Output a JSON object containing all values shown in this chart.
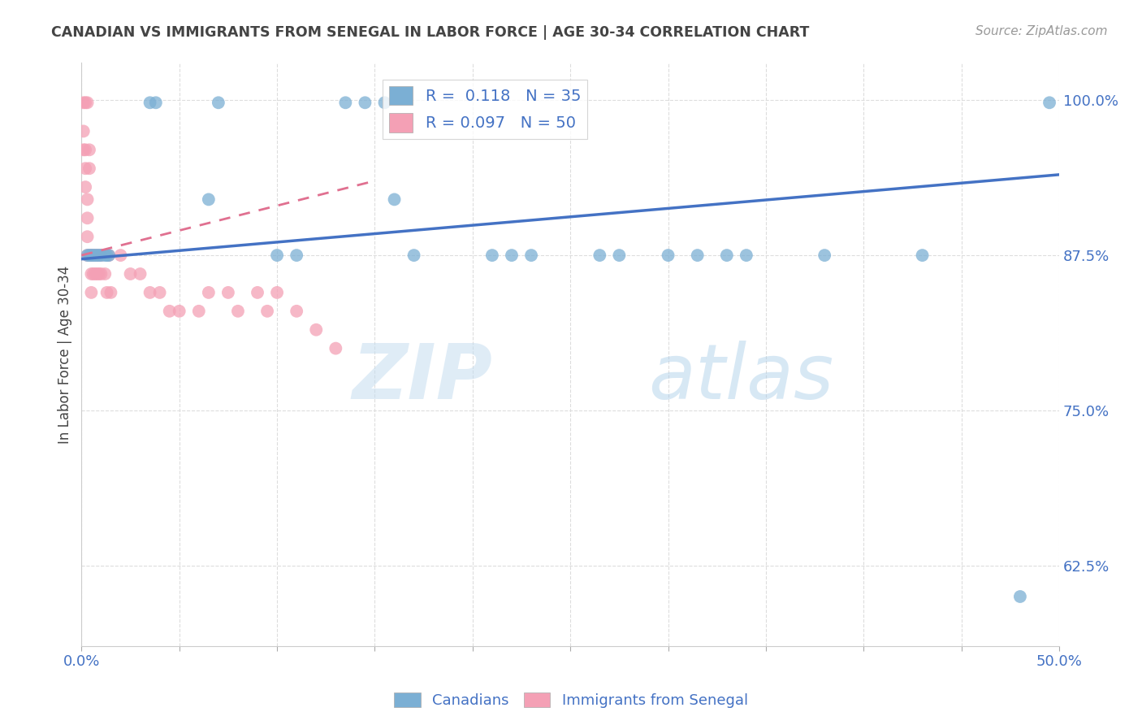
{
  "title": "CANADIAN VS IMMIGRANTS FROM SENEGAL IN LABOR FORCE | AGE 30-34 CORRELATION CHART",
  "source": "Source: ZipAtlas.com",
  "ylabel": "In Labor Force | Age 30-34",
  "xlim": [
    0.0,
    0.5
  ],
  "ylim": [
    0.56,
    1.03
  ],
  "yticks": [
    0.625,
    0.75,
    0.875,
    1.0
  ],
  "ytick_labels": [
    "62.5%",
    "75.0%",
    "87.5%",
    "100.0%"
  ],
  "xtick_labels_left": "0.0%",
  "xtick_labels_right": "50.0%",
  "canadians_x": [
    0.003,
    0.004,
    0.005,
    0.006,
    0.007,
    0.008,
    0.009,
    0.01,
    0.012,
    0.013,
    0.014,
    0.035,
    0.038,
    0.065,
    0.07,
    0.1,
    0.11,
    0.135,
    0.145,
    0.155,
    0.16,
    0.17,
    0.21,
    0.22,
    0.23,
    0.265,
    0.275,
    0.3,
    0.315,
    0.33,
    0.34,
    0.38,
    0.43,
    0.48,
    0.495
  ],
  "canadians_y": [
    0.875,
    0.875,
    0.875,
    0.875,
    0.875,
    0.875,
    0.875,
    0.875,
    0.875,
    0.875,
    0.875,
    0.998,
    0.998,
    0.92,
    0.998,
    0.875,
    0.875,
    0.998,
    0.998,
    0.998,
    0.92,
    0.875,
    0.875,
    0.875,
    0.875,
    0.875,
    0.875,
    0.875,
    0.875,
    0.875,
    0.875,
    0.875,
    0.875,
    0.6,
    0.998
  ],
  "senegal_x": [
    0.001,
    0.001,
    0.001,
    0.002,
    0.002,
    0.002,
    0.002,
    0.003,
    0.003,
    0.003,
    0.003,
    0.003,
    0.004,
    0.004,
    0.004,
    0.005,
    0.005,
    0.005,
    0.005,
    0.006,
    0.006,
    0.007,
    0.007,
    0.008,
    0.008,
    0.009,
    0.009,
    0.01,
    0.01,
    0.012,
    0.013,
    0.014,
    0.015,
    0.02,
    0.025,
    0.03,
    0.035,
    0.04,
    0.045,
    0.05,
    0.06,
    0.065,
    0.075,
    0.08,
    0.09,
    0.095,
    0.1,
    0.11,
    0.12,
    0.13
  ],
  "senegal_y": [
    0.998,
    0.975,
    0.96,
    0.998,
    0.96,
    0.945,
    0.93,
    0.998,
    0.92,
    0.905,
    0.89,
    0.875,
    0.96,
    0.945,
    0.875,
    0.875,
    0.875,
    0.86,
    0.845,
    0.875,
    0.86,
    0.875,
    0.86,
    0.875,
    0.86,
    0.875,
    0.86,
    0.875,
    0.86,
    0.86,
    0.845,
    0.875,
    0.845,
    0.875,
    0.86,
    0.86,
    0.845,
    0.845,
    0.83,
    0.83,
    0.83,
    0.845,
    0.845,
    0.83,
    0.845,
    0.83,
    0.845,
    0.83,
    0.815,
    0.8
  ],
  "canadian_color": "#7bafd4",
  "senegal_color": "#f4a0b5",
  "canadian_line_color": "#4472c4",
  "senegal_line_color": "#e07090",
  "R_canadian": 0.118,
  "N_canadian": 35,
  "R_senegal": 0.097,
  "N_senegal": 50,
  "watermark_zip": "ZIP",
  "watermark_atlas": "atlas",
  "title_color": "#444444",
  "axis_label_color": "#444444",
  "tick_color": "#4472c4",
  "grid_color": "#dddddd",
  "background_color": "#ffffff"
}
